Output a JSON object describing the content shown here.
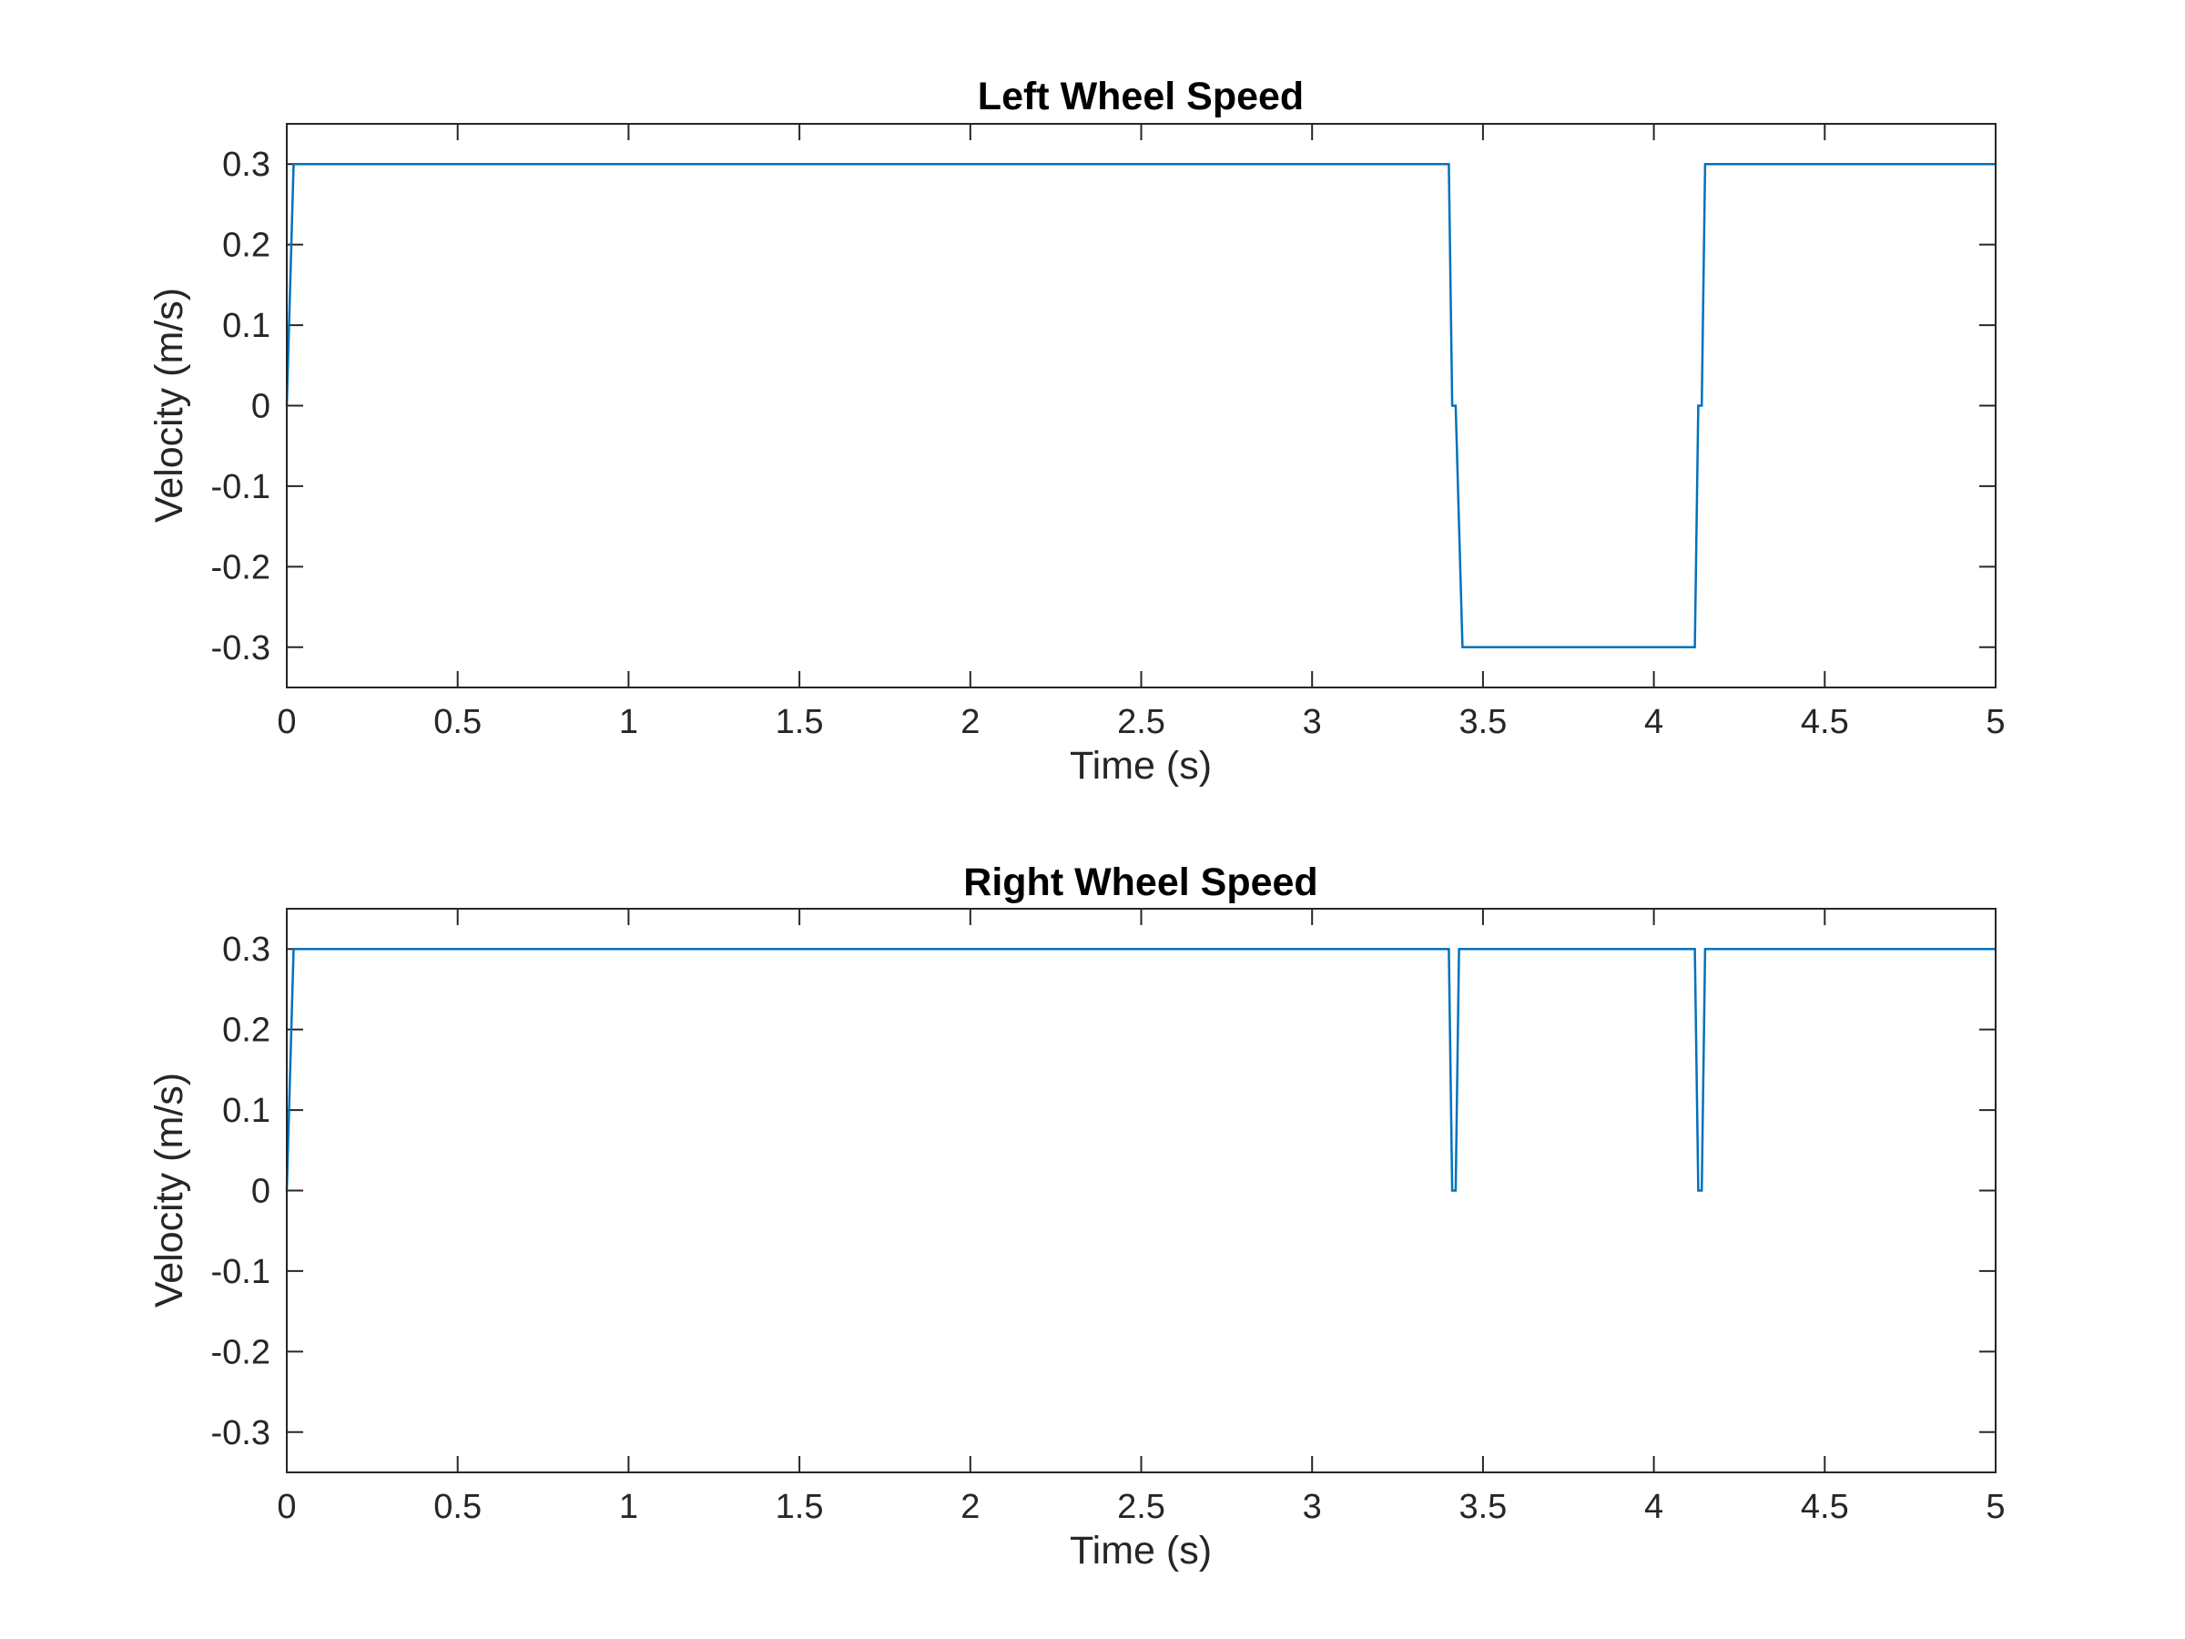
{
  "chart_data": [
    {
      "type": "line",
      "title": "Left Wheel Speed",
      "xlabel": "Time (s)",
      "ylabel": "Velocity (m/s)",
      "xlim": [
        0,
        5
      ],
      "ylim": [
        -0.35,
        0.35
      ],
      "x_ticks": [
        "0",
        "0.5",
        "1",
        "1.5",
        "2",
        "2.5",
        "3",
        "3.5",
        "4",
        "4.5",
        "5"
      ],
      "y_ticks": [
        "0.3",
        "0.2",
        "0.1",
        "0",
        "-0.1",
        "-0.2",
        "-0.3"
      ],
      "grid": false,
      "series": [
        {
          "color": "#0072BD",
          "x": [
            0,
            0.02,
            0.03,
            3.4,
            3.41,
            3.42,
            3.44,
            4.12,
            4.13,
            4.14,
            4.15,
            5.0
          ],
          "y": [
            0,
            0.3,
            0.3,
            0.3,
            0,
            0,
            -0.3,
            -0.3,
            0,
            0,
            0.3,
            0.3
          ]
        }
      ]
    },
    {
      "type": "line",
      "title": "Right Wheel Speed",
      "xlabel": "Time (s)",
      "ylabel": "Velocity (m/s)",
      "xlim": [
        0,
        5
      ],
      "ylim": [
        -0.35,
        0.35
      ],
      "x_ticks": [
        "0",
        "0.5",
        "1",
        "1.5",
        "2",
        "2.5",
        "3",
        "3.5",
        "4",
        "4.5",
        "5"
      ],
      "y_ticks": [
        "0.3",
        "0.2",
        "0.1",
        "0",
        "-0.1",
        "-0.2",
        "-0.3"
      ],
      "grid": false,
      "series": [
        {
          "color": "#0072BD",
          "x": [
            0,
            0.02,
            0.03,
            3.4,
            3.41,
            3.42,
            3.43,
            4.12,
            4.13,
            4.14,
            4.15,
            5.0
          ],
          "y": [
            0,
            0.3,
            0.3,
            0.3,
            0,
            0,
            0.3,
            0.3,
            0,
            0,
            0.3,
            0.3
          ]
        }
      ]
    }
  ]
}
